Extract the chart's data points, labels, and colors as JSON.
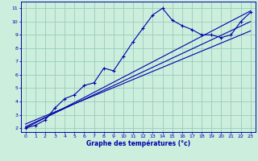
{
  "xlabel": "Graphe des températures (°c)",
  "bg_color": "#cceedd",
  "grid_color": "#99ccbb",
  "line_color": "#0000aa",
  "xlim": [
    -0.5,
    23.5
  ],
  "ylim": [
    1.7,
    11.5
  ],
  "xticks": [
    0,
    1,
    2,
    3,
    4,
    5,
    6,
    7,
    8,
    9,
    10,
    11,
    12,
    13,
    14,
    15,
    16,
    17,
    18,
    19,
    20,
    21,
    22,
    23
  ],
  "yticks": [
    2,
    3,
    4,
    5,
    6,
    7,
    8,
    9,
    10,
    11
  ],
  "wavy_x": [
    0,
    1,
    2,
    3,
    4,
    5,
    6,
    7,
    8,
    9,
    10,
    11,
    12,
    13,
    14,
    15,
    16,
    17,
    18,
    19,
    20,
    21,
    22,
    23
  ],
  "wavy_y": [
    2.0,
    2.2,
    2.6,
    3.5,
    4.2,
    4.5,
    5.2,
    5.4,
    6.5,
    6.3,
    7.4,
    8.5,
    9.5,
    10.5,
    11.0,
    10.1,
    9.7,
    9.4,
    9.0,
    9.0,
    8.8,
    9.0,
    10.0,
    10.7
  ],
  "line1_x": [
    0,
    23
  ],
  "line1_y": [
    2.0,
    10.8
  ],
  "line2_x": [
    0,
    23
  ],
  "line2_y": [
    2.1,
    10.0
  ],
  "line3_x": [
    0,
    23
  ],
  "line3_y": [
    2.3,
    9.3
  ]
}
